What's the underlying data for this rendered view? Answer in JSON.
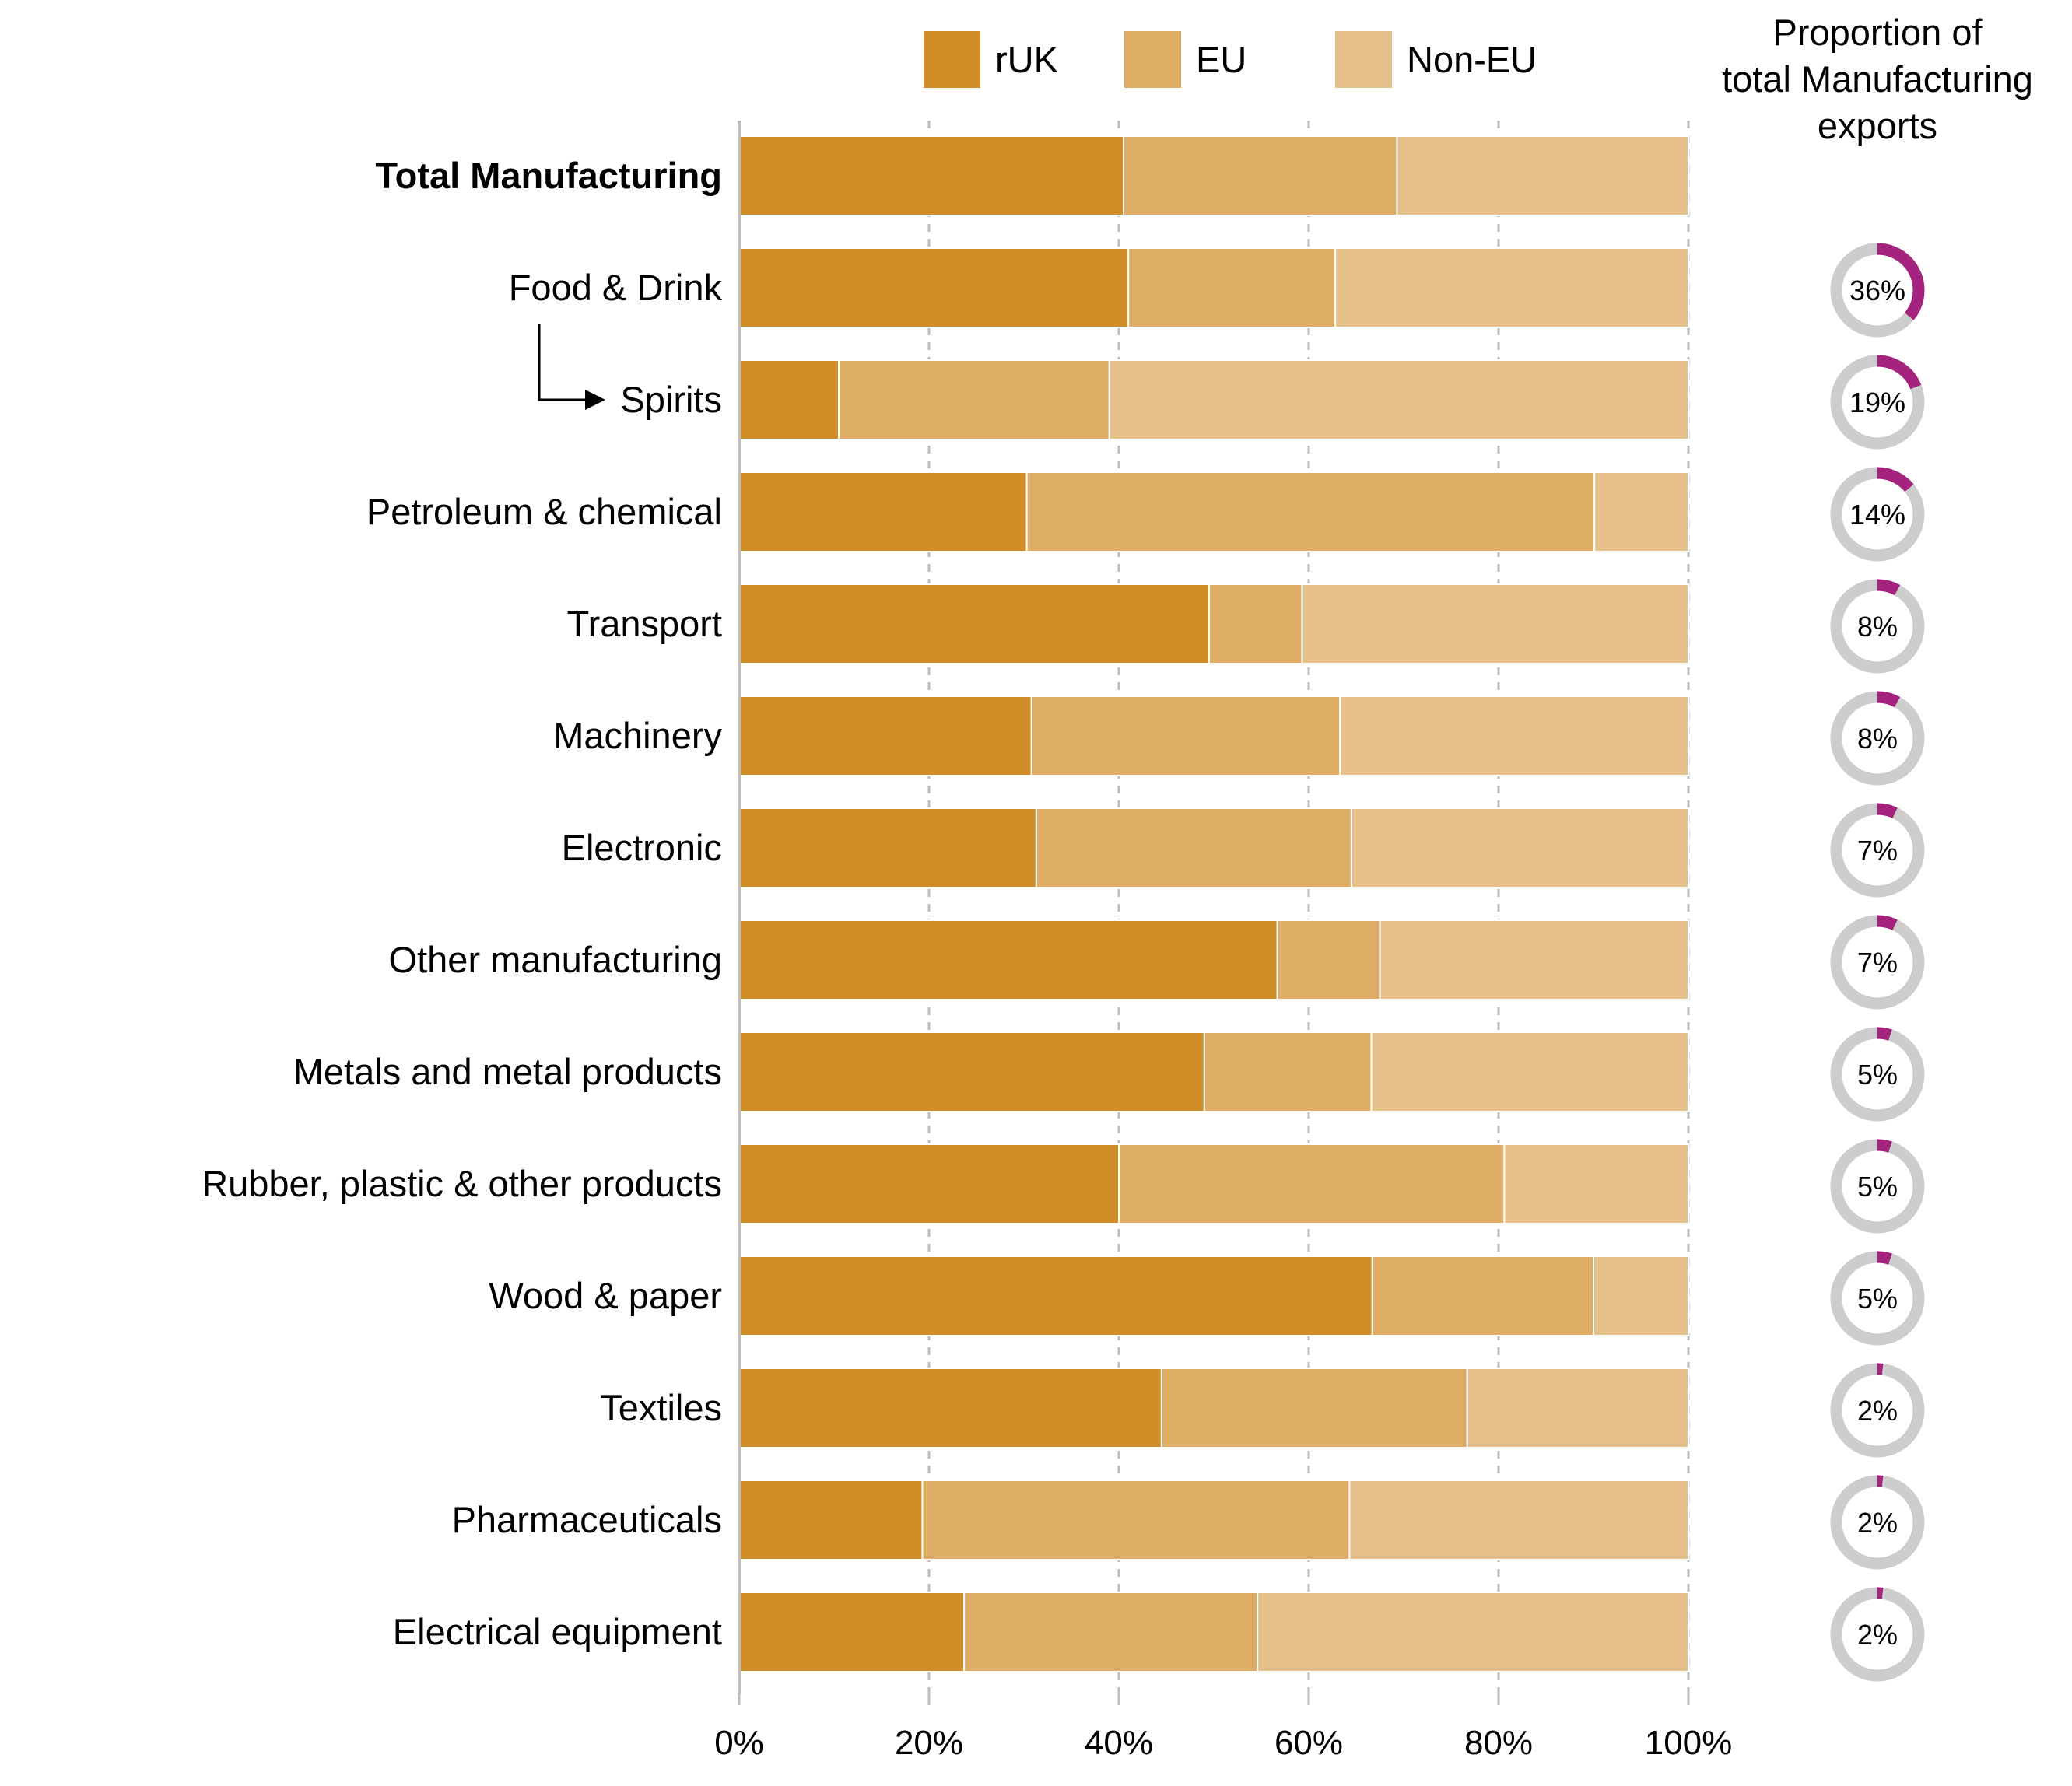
{
  "chart_data": {
    "type": "bar",
    "orientation": "horizontal",
    "stacked": "percent",
    "categories": [
      "Total Manufacturing",
      "Food & Drink",
      "Spirits",
      "Petroleum & chemical",
      "Transport",
      "Machinery",
      "Electronic",
      "Other manufacturing",
      "Metals and metal products",
      "Rubber, plastic & other products",
      "Wood & paper",
      "Textiles",
      "Pharmaceuticals",
      "Electrical equipment"
    ],
    "series": [
      {
        "name": "rUK",
        "color": "#D08E29",
        "values": [
          40.5,
          41,
          10.5,
          30.3,
          49.5,
          30.8,
          31.3,
          56.7,
          49,
          40,
          66.7,
          44.5,
          19.3,
          23.7
        ]
      },
      {
        "name": "EU",
        "color": "#DDAD65",
        "values": [
          28.8,
          21.8,
          28.5,
          59.8,
          9.8,
          32.5,
          33.2,
          10.8,
          17.6,
          40.6,
          23.3,
          32.2,
          45,
          30.9
        ]
      },
      {
        "name": "Non-EU",
        "color": "#E5C08B",
        "values": [
          30.7,
          37.2,
          61,
          9.9,
          40.7,
          36.7,
          35.5,
          32.5,
          33.4,
          19.4,
          10,
          23.3,
          35.7,
          45.4
        ]
      }
    ],
    "xticks": [
      "0%",
      "20%",
      "40%",
      "60%",
      "80%",
      "100%"
    ],
    "xlim": [
      0,
      100
    ],
    "grid": "vertical dashed",
    "legend": "top",
    "bold_category": "Total Manufacturing",
    "sub_category_arrow": {
      "from": "Food & Drink",
      "to": "Spirits"
    },
    "side_panel": {
      "title_lines": [
        "Proportion of",
        "total Manufacturing",
        "exports"
      ],
      "accent_color": "#A3237F",
      "track_color": "#CDCDCD",
      "donuts": [
        {
          "category": "Food & Drink",
          "value": 36,
          "label": "36%"
        },
        {
          "category": "Spirits",
          "value": 19,
          "label": "19%"
        },
        {
          "category": "Petroleum & chemical",
          "value": 14,
          "label": "14%"
        },
        {
          "category": "Transport",
          "value": 8,
          "label": "8%"
        },
        {
          "category": "Machinery",
          "value": 8,
          "label": "8%"
        },
        {
          "category": "Electronic",
          "value": 7,
          "label": "7%"
        },
        {
          "category": "Other manufacturing",
          "value": 7,
          "label": "7%"
        },
        {
          "category": "Metals and metal products",
          "value": 5,
          "label": "5%"
        },
        {
          "category": "Rubber, plastic & other products",
          "value": 5,
          "label": "5%"
        },
        {
          "category": "Wood & paper",
          "value": 5,
          "label": "5%"
        },
        {
          "category": "Textiles",
          "value": 2,
          "label": "2%"
        },
        {
          "category": "Pharmaceuticals",
          "value": 2,
          "label": "2%"
        },
        {
          "category": "Electrical equipment",
          "value": 2,
          "label": "2%"
        }
      ]
    }
  }
}
